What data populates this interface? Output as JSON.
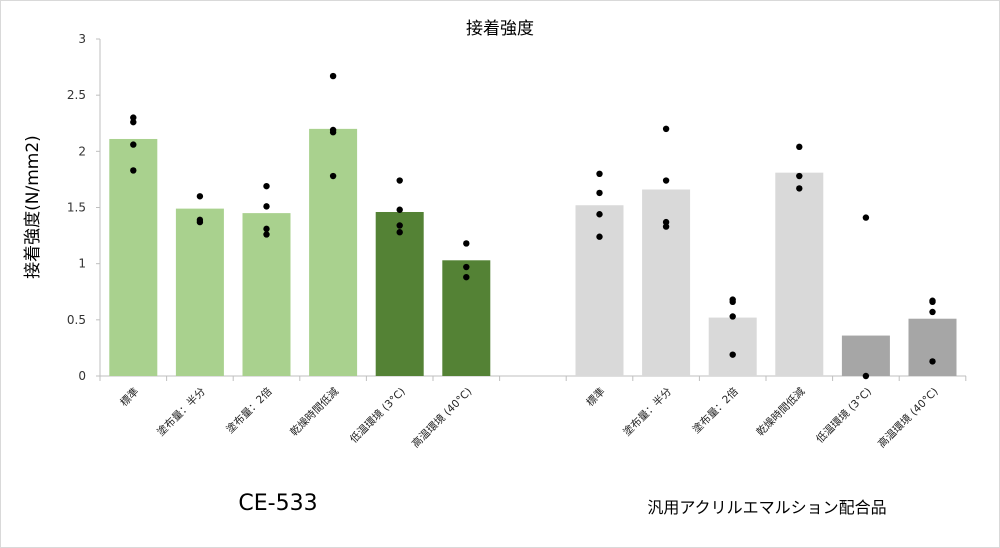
{
  "chart_data": {
    "type": "bar",
    "title": "接着強度",
    "ylabel": "接着強度(N/mm2)",
    "xlabel": "",
    "ylim": [
      0,
      3
    ],
    "yticks": [
      "0",
      "0.5",
      "1",
      "1.5",
      "2",
      "2.5",
      "3"
    ],
    "grid": false,
    "groups": [
      {
        "name": "CE-533",
        "bars": [
          {
            "category": "標準",
            "value": 2.11,
            "color": "#a9d18e",
            "points": [
              1.83,
              2.06,
              2.26,
              2.3
            ]
          },
          {
            "category": "塗布量：半分",
            "value": 1.49,
            "color": "#a9d18e",
            "points": [
              1.37,
              1.39,
              1.6
            ]
          },
          {
            "category": "塗布量：2倍",
            "value": 1.45,
            "color": "#a9d18e",
            "points": [
              1.26,
              1.31,
              1.51,
              1.69
            ]
          },
          {
            "category": "乾燥時間低減",
            "value": 2.2,
            "color": "#a9d18e",
            "points": [
              1.78,
              2.17,
              2.19,
              2.67
            ]
          },
          {
            "category": "低温環境 (3°C)",
            "value": 1.46,
            "color": "#548235",
            "points": [
              1.28,
              1.34,
              1.48,
              1.74
            ]
          },
          {
            "category": "高温環境 (40°C)",
            "value": 1.03,
            "color": "#548235",
            "points": [
              0.88,
              0.97,
              1.18
            ]
          }
        ]
      },
      {
        "name": "汎用アクリルエマルション配合品",
        "bars": [
          {
            "category": "標準",
            "value": 1.52,
            "color": "#d9d9d9",
            "points": [
              1.24,
              1.44,
              1.63,
              1.8
            ]
          },
          {
            "category": "塗布量：半分",
            "value": 1.66,
            "color": "#d9d9d9",
            "points": [
              1.33,
              1.37,
              1.74,
              2.2
            ]
          },
          {
            "category": "塗布量：2倍",
            "value": 0.52,
            "color": "#d9d9d9",
            "points": [
              0.19,
              0.53,
              0.66,
              0.68
            ]
          },
          {
            "category": "乾燥時間低減",
            "value": 1.81,
            "color": "#d9d9d9",
            "points": [
              1.67,
              1.78,
              2.04
            ]
          },
          {
            "category": "低温環境 (3°C)",
            "value": 0.36,
            "color": "#a6a6a6",
            "points": [
              0.0,
              1.41
            ]
          },
          {
            "category": "高温環境 (40°C)",
            "value": 0.51,
            "color": "#a6a6a6",
            "points": [
              0.13,
              0.57,
              0.66,
              0.67
            ]
          }
        ]
      }
    ]
  }
}
